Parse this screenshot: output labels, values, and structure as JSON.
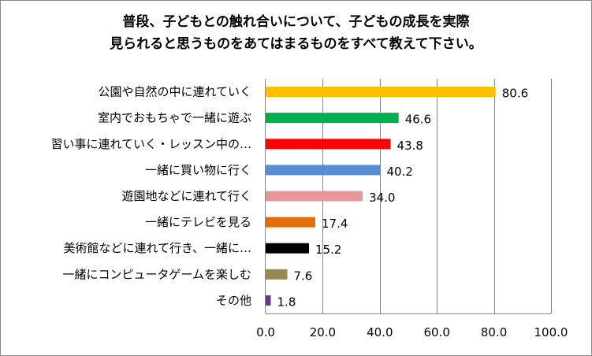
{
  "chart_data": {
    "type": "bar",
    "orientation": "horizontal",
    "title_lines": [
      "普段、子どもとの触れ合いについて、子どもの成長を実際",
      "見られると思うものをあてはまるものをすべて教えて下さい。"
    ],
    "categories": [
      "公園や自然の中に連れていく",
      "室内でおもちゃで一緒に遊ぶ",
      "習い事に連れていく・レッスン中の…",
      "一緒に買い物に行く",
      "遊園地などに連れて行く",
      "一緒にテレビを見る",
      "美術館などに連れて行き、一緒に…",
      "一緒にコンピュータゲームを楽しむ",
      "その他"
    ],
    "values": [
      80.6,
      46.6,
      43.8,
      40.2,
      34.0,
      17.4,
      15.2,
      7.6,
      1.8
    ],
    "value_labels": [
      "80.6",
      "46.6",
      "43.8",
      "40.2",
      "34.0",
      "17.4",
      "15.2",
      "7.6",
      "1.8"
    ],
    "colors": [
      "#FFC000",
      "#00B050",
      "#FF0000",
      "#558ED5",
      "#E6979A",
      "#E46C0A",
      "#000000",
      "#948A54",
      "#7030A0"
    ],
    "xlim": [
      0,
      100
    ],
    "xticks": [
      0,
      20,
      40,
      60,
      80,
      100
    ],
    "xtick_labels": [
      "0.0",
      "20.0",
      "40.0",
      "60.0",
      "80.0",
      "100.0"
    ],
    "grid": true
  }
}
